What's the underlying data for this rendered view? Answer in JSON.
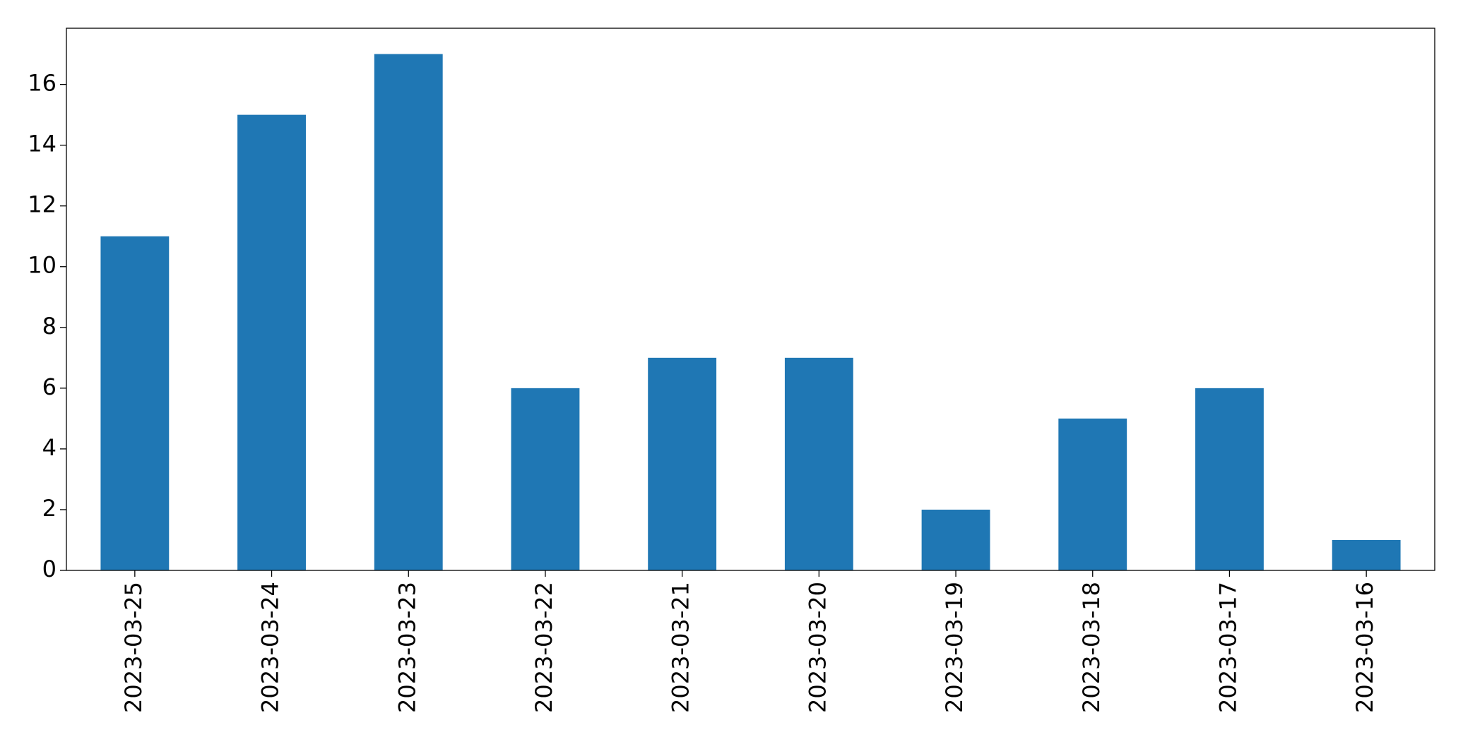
{
  "chart_data": {
    "type": "bar",
    "categories": [
      "2023-03-25",
      "2023-03-24",
      "2023-03-23",
      "2023-03-22",
      "2023-03-21",
      "2023-03-20",
      "2023-03-19",
      "2023-03-18",
      "2023-03-17",
      "2023-03-16"
    ],
    "values": [
      11,
      15,
      17,
      6,
      7,
      7,
      2,
      5,
      6,
      1
    ],
    "color": "#1f77b4",
    "ylim": [
      0,
      17.85
    ],
    "yticks": [
      0,
      2,
      4,
      6,
      8,
      10,
      12,
      14,
      16
    ],
    "grid": false
  }
}
